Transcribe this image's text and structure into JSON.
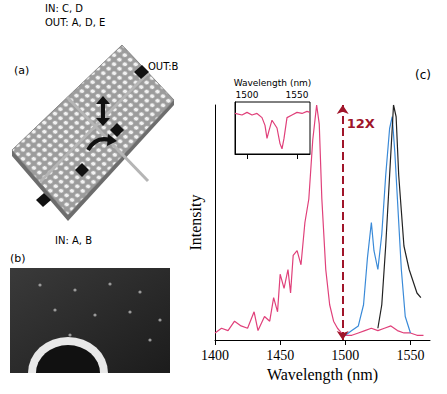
{
  "panel_a": {
    "label": "(a)",
    "texts": {
      "in_top": "IN: C, D",
      "out_top": "OUT: A, D, E",
      "out_right": "OUT:B",
      "in_bottom": "IN: A, B"
    }
  },
  "panel_b": {
    "label": "(b)"
  },
  "chart_data": [
    {
      "type": "line",
      "title": "(c)",
      "x_label": "Wavelength (nm)",
      "y_label": "Intensity",
      "xlim": [
        1400,
        1565
      ],
      "xticks": [
        1400,
        1450,
        1500,
        1550
      ],
      "ylim": [
        0,
        1
      ],
      "tick_labels": "x",
      "grid": false,
      "annotations": [
        {
          "text": "12X",
          "x": 1498,
          "y": 0.92,
          "color": "#a0152a"
        }
      ],
      "series": [
        {
          "color": "#e0407a",
          "marker": "none",
          "line_style": "solid",
          "x": [
            1400,
            1405,
            1410,
            1415,
            1420,
            1425,
            1430,
            1433,
            1438,
            1442,
            1445,
            1448,
            1450,
            1453,
            1456,
            1458,
            1460,
            1463,
            1466,
            1469,
            1472,
            1475,
            1478,
            1480,
            1482,
            1485,
            1488,
            1491,
            1494,
            1497,
            1500,
            1505,
            1510,
            1515,
            1520,
            1525,
            1530,
            1535,
            1540,
            1545,
            1550,
            1555,
            1560
          ],
          "values": [
            0.03,
            0.05,
            0.04,
            0.08,
            0.06,
            0.05,
            0.12,
            0.04,
            0.1,
            0.08,
            0.18,
            0.12,
            0.28,
            0.22,
            0.3,
            0.2,
            0.36,
            0.38,
            0.32,
            0.5,
            0.6,
            0.85,
            1.0,
            0.92,
            0.6,
            0.3,
            0.15,
            0.08,
            0.05,
            0.03,
            0.02,
            0.02,
            0.03,
            0.04,
            0.05,
            0.04,
            0.05,
            0.06,
            0.04,
            0.03,
            0.03,
            0.02,
            0.02
          ]
        },
        {
          "color": "#3a8ad8",
          "marker": "none",
          "line_style": "solid",
          "x": [
            1500,
            1505,
            1510,
            1514,
            1517,
            1520,
            1522,
            1525,
            1528,
            1531,
            1534,
            1536,
            1538,
            1540,
            1543,
            1546,
            1550
          ],
          "values": [
            0.02,
            0.04,
            0.06,
            0.15,
            0.35,
            0.5,
            0.38,
            0.3,
            0.45,
            0.7,
            0.9,
            0.95,
            0.8,
            0.6,
            0.3,
            0.1,
            0.03
          ]
        },
        {
          "color": "#222222",
          "marker": "none",
          "line_style": "solid",
          "x": [
            1525,
            1528,
            1531,
            1534,
            1537,
            1539,
            1541,
            1543,
            1545,
            1547,
            1549,
            1552,
            1555,
            1558
          ],
          "values": [
            0.05,
            0.15,
            0.4,
            0.7,
            1.0,
            0.95,
            0.7,
            0.55,
            0.4,
            0.35,
            0.3,
            0.25,
            0.2,
            0.18
          ]
        }
      ]
    },
    {
      "type": "line",
      "x_label": "Wavelength (nm)",
      "xlim": [
        1488,
        1563
      ],
      "xticks": [
        1500,
        1550
      ],
      "ylim": [
        0,
        1
      ],
      "tick_labels": "x",
      "grid": false,
      "series": [
        {
          "color": "#e0407a",
          "marker": "none",
          "line_style": "solid",
          "x": [
            1488,
            1495,
            1500,
            1505,
            1510,
            1515,
            1518,
            1520,
            1522,
            1525,
            1530,
            1533,
            1535,
            1537,
            1540,
            1545,
            1550,
            1555,
            1560,
            1563
          ],
          "values": [
            0.78,
            0.75,
            0.8,
            0.75,
            0.78,
            0.7,
            0.55,
            0.3,
            0.45,
            0.65,
            0.5,
            0.2,
            0.1,
            0.3,
            0.7,
            0.75,
            0.8,
            0.78,
            0.82,
            0.8
          ]
        }
      ]
    }
  ]
}
